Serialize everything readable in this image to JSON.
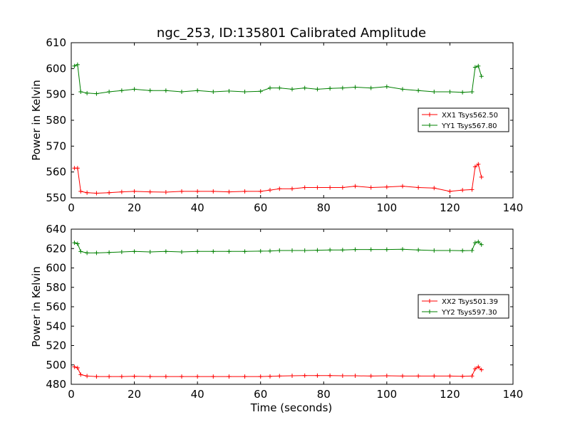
{
  "chart_data": [
    {
      "type": "line",
      "title": "ngc_253, ID:135801 Calibrated Amplitude",
      "xlabel": "",
      "ylabel": "Power in Kelvin",
      "xlim": [
        0,
        140
      ],
      "ylim": [
        550,
        610
      ],
      "xticks": [
        0,
        20,
        40,
        60,
        80,
        100,
        120,
        140
      ],
      "yticks": [
        550,
        560,
        570,
        580,
        590,
        600,
        610
      ],
      "grid": false,
      "legend_position": "right",
      "series": [
        {
          "name": "XX1 Tsys562.50",
          "color": "#ff0000",
          "marker": "+",
          "x": [
            1,
            2,
            3,
            5,
            8,
            12,
            16,
            20,
            25,
            30,
            35,
            40,
            45,
            50,
            55,
            60,
            63,
            66,
            70,
            74,
            78,
            82,
            86,
            90,
            95,
            100,
            105,
            110,
            115,
            120,
            124,
            127,
            128,
            129,
            130
          ],
          "y": [
            561.5,
            561.5,
            552.5,
            552,
            551.8,
            552,
            552.3,
            552.5,
            552.3,
            552.2,
            552.5,
            552.5,
            552.5,
            552.3,
            552.5,
            552.5,
            553,
            553.5,
            553.5,
            554,
            554,
            554,
            554,
            554.5,
            554,
            554.2,
            554.5,
            554,
            553.8,
            552.5,
            553,
            553.2,
            562,
            563,
            558
          ]
        },
        {
          "name": "YY1 Tsys567.80",
          "color": "#008000",
          "marker": "+",
          "x": [
            1,
            2,
            3,
            5,
            8,
            12,
            16,
            20,
            25,
            30,
            35,
            40,
            45,
            50,
            55,
            60,
            63,
            66,
            70,
            74,
            78,
            82,
            86,
            90,
            95,
            100,
            105,
            110,
            115,
            120,
            124,
            127,
            128,
            129,
            130
          ],
          "y": [
            601,
            601.5,
            591,
            590.5,
            590.3,
            591,
            591.5,
            592,
            591.5,
            591.5,
            591,
            591.5,
            591,
            591.3,
            591,
            591.2,
            592.5,
            592.5,
            592,
            592.5,
            592,
            592.3,
            592.5,
            592.8,
            592.5,
            593,
            592,
            591.5,
            591,
            591,
            590.8,
            591,
            600.5,
            601,
            597
          ]
        }
      ]
    },
    {
      "type": "line",
      "title": "",
      "xlabel": "Time (seconds)",
      "ylabel": "Power in Kelvin",
      "xlim": [
        0,
        140
      ],
      "ylim": [
        480,
        640
      ],
      "xticks": [
        0,
        20,
        40,
        60,
        80,
        100,
        120,
        140
      ],
      "yticks": [
        480,
        500,
        520,
        540,
        560,
        580,
        600,
        620,
        640
      ],
      "grid": false,
      "legend_position": "right",
      "series": [
        {
          "name": "XX2 Tsys501.39",
          "color": "#ff0000",
          "marker": "+",
          "x": [
            1,
            2,
            3,
            5,
            8,
            12,
            16,
            20,
            25,
            30,
            35,
            40,
            45,
            50,
            55,
            60,
            63,
            66,
            70,
            74,
            78,
            82,
            86,
            90,
            95,
            100,
            105,
            110,
            115,
            120,
            124,
            127,
            128,
            129,
            130
          ],
          "y": [
            498,
            497,
            490,
            488.5,
            488,
            488,
            488,
            488.2,
            488,
            488,
            488,
            488,
            488,
            488,
            488,
            488,
            488.2,
            488.5,
            488.8,
            489,
            489,
            489,
            488.8,
            488.8,
            488.5,
            488.8,
            488.5,
            488.5,
            488.5,
            488.5,
            488.3,
            488.5,
            496,
            498,
            495
          ]
        },
        {
          "name": "YY2 Tsys597.30",
          "color": "#008000",
          "marker": "+",
          "x": [
            1,
            2,
            3,
            5,
            8,
            12,
            16,
            20,
            25,
            30,
            35,
            40,
            45,
            50,
            55,
            60,
            63,
            66,
            70,
            74,
            78,
            82,
            86,
            90,
            95,
            100,
            105,
            110,
            115,
            120,
            124,
            127,
            128,
            129,
            130
          ],
          "y": [
            626,
            625,
            617,
            615.5,
            615.5,
            616,
            616.5,
            617,
            616.5,
            617,
            616.5,
            617,
            617,
            617,
            617,
            617.3,
            617.5,
            618,
            618,
            618,
            618.3,
            618.5,
            618.5,
            619,
            619,
            619,
            619.3,
            618.5,
            618,
            618,
            617.8,
            618,
            626,
            627,
            624
          ]
        }
      ]
    }
  ]
}
